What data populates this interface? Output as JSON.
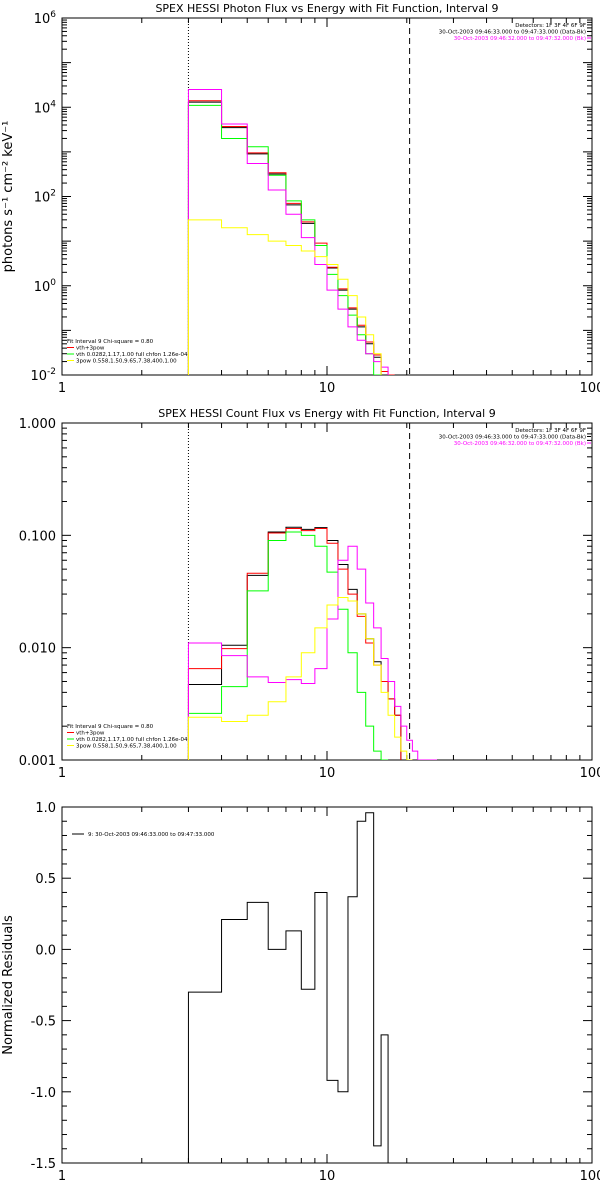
{
  "chart_data": [
    {
      "type": "line",
      "title": "SPEX HESSI Photon Flux vs Energy with Fit Function, Interval 9",
      "xlabel": "",
      "ylabel": "photons s⁻¹ cm⁻² keV⁻¹",
      "xscale": "log",
      "yscale": "log",
      "xlim": [
        1,
        100
      ],
      "ylim": [
        0.01,
        1000000
      ],
      "x_tick_labels": [
        "1",
        "10",
        "100"
      ],
      "y_ticks": [
        {
          "value": 0.01,
          "base": "10",
          "exp": "-2"
        },
        {
          "value": 1,
          "base": "10",
          "exp": "0"
        },
        {
          "value": 100,
          "base": "10",
          "exp": "2"
        },
        {
          "value": 10000,
          "base": "10",
          "exp": "4"
        },
        {
          "value": 1000000,
          "base": "10",
          "exp": "6"
        }
      ],
      "vlines": [
        {
          "x": 3,
          "style": "dotted",
          "color": "#000000"
        },
        {
          "x": 20.5,
          "style": "dashed",
          "color": "#000000"
        }
      ],
      "header_lines": [
        "Detectors: 1F 3F 4F 6F 9F",
        "30-Oct-2003 09:46:33.000 to 09:47:33.000 (Data-Bk)",
        "30-Oct-2003 09:46:32.000 to 09:47:32.000 (Bk)"
      ],
      "header_colors": [
        "#000000",
        "#000000",
        "#ff00ff"
      ],
      "legend": [
        {
          "text": "Fit Interval 9   Chi-square = 0.80",
          "color": ""
        },
        {
          "text": "vth+3pow",
          "color": "#ff0000"
        },
        {
          "text": "vth 0.0282,1.17,1.00  full chfon 1.26e-04",
          "color": "#00ff00"
        },
        {
          "text": "3pow 0.558,1.50,9.65,7.38,400,1.00",
          "color": "#ffff00"
        }
      ],
      "x_edges": [
        3,
        3.5,
        4,
        5,
        6,
        7,
        8,
        9,
        10,
        11,
        12,
        13,
        14,
        15,
        16,
        17,
        18,
        19,
        20,
        21,
        22,
        23,
        24
      ],
      "series": [
        {
          "name": "",
          "color": "#000000",
          "values": [
            13000,
            13000,
            3500,
            900,
            320,
            65,
            25,
            8,
            2.5,
            0.8,
            0.3,
            0.12,
            0.05,
            0.025,
            0.01,
            0.005
          ]
        },
        {
          "name": "",
          "color": "#ff0000",
          "values": [
            14000,
            14000,
            3700,
            950,
            340,
            70,
            27,
            9,
            2.6,
            0.85,
            0.32,
            0.13,
            0.055,
            0.028,
            0.012,
            0.006
          ]
        },
        {
          "name": "",
          "color": "#00ff00",
          "values": [
            11000,
            11000,
            2000,
            1300,
            300,
            80,
            30,
            8,
            1.8,
            0.6,
            0.22,
            0.08,
            0.03,
            0.01
          ]
        },
        {
          "name": "",
          "color": "#ff00ff",
          "values": [
            25000,
            25000,
            4200,
            550,
            140,
            40,
            12,
            3,
            0.8,
            0.3,
            0.12,
            0.06,
            0.03,
            0.02,
            0.015
          ]
        },
        {
          "name": "",
          "color": "#ffff00",
          "values": [
            30,
            30,
            20,
            14,
            10,
            8,
            6,
            4.5,
            3,
            1.4,
            0.6,
            0.2,
            0.08,
            0.03
          ]
        }
      ]
    },
    {
      "type": "line",
      "title": "SPEX HESSI Count Flux vs Energy with Fit Function, Interval 9",
      "xlabel": "",
      "ylabel": "",
      "xscale": "log",
      "yscale": "log",
      "xlim": [
        1,
        100
      ],
      "ylim": [
        0.001,
        1.0
      ],
      "x_tick_labels": [
        "1",
        "10",
        "100"
      ],
      "y_ticks": [
        {
          "value": 0.001,
          "label": "0.001"
        },
        {
          "value": 0.01,
          "label": "0.010"
        },
        {
          "value": 0.1,
          "label": "0.100"
        },
        {
          "value": 1.0,
          "label": "1.000"
        }
      ],
      "vlines": [
        {
          "x": 3,
          "style": "dotted",
          "color": "#000000"
        },
        {
          "x": 20.5,
          "style": "dashed",
          "color": "#000000"
        }
      ],
      "header_lines": [
        "Detectors: 1F 3F 4F 6F 9F",
        "30-Oct-2003 09:46:33.000 to 09:47:33.000 (Data-Bk)",
        "30-Oct-2003 09:46:32.000 to 09:47:32.000 (Bk)"
      ],
      "header_colors": [
        "#000000",
        "#000000",
        "#ff00ff"
      ],
      "legend": [
        {
          "text": "Fit Interval 9   Chi-square = 0.80",
          "color": ""
        },
        {
          "text": "vth+3pow",
          "color": "#ff0000"
        },
        {
          "text": "vth 0.0282,1.17,1.00  full chfon 1.26e-04",
          "color": "#00ff00"
        },
        {
          "text": "3pow 0.558,1.50,9.65,7.38,400,1.00",
          "color": "#ffff00"
        }
      ],
      "x_edges": [
        3,
        4,
        5,
        6,
        7,
        8,
        9,
        10,
        11,
        12,
        13,
        14,
        15,
        16,
        17,
        18,
        19,
        20,
        21,
        22,
        24,
        26
      ],
      "series": [
        {
          "name": "",
          "color": "#000000",
          "values": [
            0.0047,
            0.0105,
            0.044,
            0.107,
            0.118,
            0.113,
            0.117,
            0.09,
            0.055,
            0.033,
            0.02,
            0.012,
            0.0075,
            0.005,
            0.0035,
            0.0025
          ]
        },
        {
          "name": "",
          "color": "#ff0000",
          "values": [
            0.0065,
            0.0098,
            0.046,
            0.105,
            0.115,
            0.11,
            0.115,
            0.085,
            0.05,
            0.03,
            0.019,
            0.011,
            0.007,
            0.005,
            0.0035,
            0.0025
          ]
        },
        {
          "name": "",
          "color": "#00ff00",
          "values": [
            0.0026,
            0.0045,
            0.032,
            0.09,
            0.107,
            0.1,
            0.08,
            0.047,
            0.022,
            0.009,
            0.004,
            0.002,
            0.0012,
            0.001
          ]
        },
        {
          "name": "",
          "color": "#ff00ff",
          "values": [
            0.011,
            0.0085,
            0.0055,
            0.0049,
            0.0052,
            0.0048,
            0.0065,
            0.018,
            0.06,
            0.08,
            0.05,
            0.025,
            0.015,
            0.008,
            0.005,
            0.003,
            0.002,
            0.0015,
            0.0012,
            0.001,
            0.001
          ]
        },
        {
          "name": "",
          "color": "#ffff00",
          "values": [
            0.0024,
            0.0022,
            0.0025,
            0.0033,
            0.0055,
            0.009,
            0.015,
            0.024,
            0.028,
            0.026,
            0.02,
            0.012,
            0.007,
            0.004,
            0.0025,
            0.0016,
            0.0012,
            0.001
          ]
        }
      ]
    },
    {
      "type": "line",
      "title": "",
      "xlabel": "",
      "ylabel": "Normalized Residuals",
      "xscale": "log",
      "yscale": "linear",
      "xlim": [
        1,
        100
      ],
      "ylim": [
        -1.5,
        1.0
      ],
      "x_tick_labels": [
        "1",
        "10",
        "100"
      ],
      "y_ticks": [
        {
          "value": 1.0,
          "label": "1.0"
        },
        {
          "value": 0.5,
          "label": "0.5"
        },
        {
          "value": 0.0,
          "label": "0.0"
        },
        {
          "value": -0.5,
          "label": "-0.5"
        },
        {
          "value": -1.0,
          "label": "-1.0"
        },
        {
          "value": -1.5,
          "label": "-1.5"
        }
      ],
      "vlines": [],
      "header_lines": [],
      "header_colors": [],
      "legend": [
        {
          "text": "9: 30-Oct-2003 09:46:33.000 to 09:47:33.000",
          "color": "#000000",
          "line": true
        }
      ],
      "x_edges": [
        3,
        4,
        5,
        6,
        7,
        8,
        9,
        10,
        11,
        12,
        13,
        14,
        15,
        16,
        17,
        18,
        19,
        20
      ],
      "series": [
        {
          "name": "",
          "color": "#000000",
          "values": [
            -0.3,
            0.21,
            0.33,
            0.0,
            0.13,
            -0.28,
            0.4,
            -0.92,
            -1.0,
            0.37,
            0.9,
            0.96,
            -1.38,
            -0.6
          ],
          "drop_to_floor": true
        }
      ]
    }
  ]
}
